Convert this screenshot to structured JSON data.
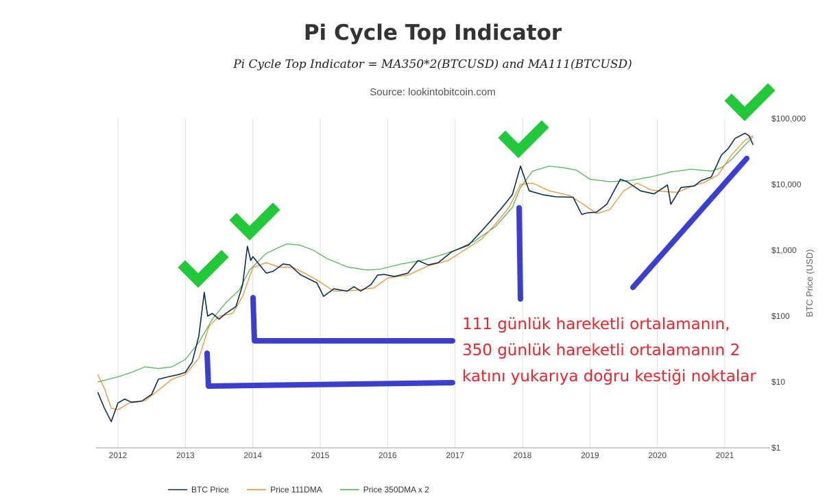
{
  "title": "Pi Cycle Top Indicator",
  "subtitle": "Pi Cycle Top Indicator = MA350*2(BTCUSD) and MA111(BTCUSD)",
  "source": "Source: lookintobitcoin.com",
  "annotation_lines": [
    "111 günlük hareketli ortalamanın,",
    "350 günlük hareketli ortalamanın 2",
    "katını yukarıya doğru kestiği noktalar"
  ],
  "chart_data": {
    "type": "line",
    "x_ticks": [
      "2012",
      "2013",
      "2014",
      "2015",
      "2016",
      "2017",
      "2018",
      "2019",
      "2020",
      "2021"
    ],
    "y_ticks": [
      "$1",
      "$10",
      "$100",
      "$1,000",
      "$10,000",
      "$100,000"
    ],
    "ylabel": "BTC Price (USD)",
    "yscale": "log",
    "ylim": [
      1,
      100000
    ],
    "xlim": [
      2011.7,
      2021.67
    ],
    "grid": true,
    "legend_position": "bottom",
    "series": [
      {
        "name": "BTC Price",
        "color": "#0b2d4f",
        "points": [
          [
            2011.7,
            7
          ],
          [
            2011.8,
            4
          ],
          [
            2011.9,
            2.5
          ],
          [
            2012.0,
            4.8
          ],
          [
            2012.1,
            5.5
          ],
          [
            2012.2,
            4.9
          ],
          [
            2012.35,
            5.1
          ],
          [
            2012.5,
            6.5
          ],
          [
            2012.6,
            11
          ],
          [
            2012.75,
            12
          ],
          [
            2012.9,
            13
          ],
          [
            2013.0,
            14
          ],
          [
            2013.1,
            20
          ],
          [
            2013.2,
            50
          ],
          [
            2013.28,
            230
          ],
          [
            2013.33,
            100
          ],
          [
            2013.4,
            110
          ],
          [
            2013.5,
            90
          ],
          [
            2013.6,
            110
          ],
          [
            2013.75,
            140
          ],
          [
            2013.85,
            300
          ],
          [
            2013.92,
            1150
          ],
          [
            2013.97,
            700
          ],
          [
            2014.0,
            800
          ],
          [
            2014.1,
            600
          ],
          [
            2014.2,
            450
          ],
          [
            2014.3,
            480
          ],
          [
            2014.45,
            620
          ],
          [
            2014.55,
            600
          ],
          [
            2014.7,
            430
          ],
          [
            2014.85,
            360
          ],
          [
            2014.95,
            320
          ],
          [
            2015.05,
            200
          ],
          [
            2015.2,
            260
          ],
          [
            2015.4,
            240
          ],
          [
            2015.5,
            280
          ],
          [
            2015.6,
            240
          ],
          [
            2015.75,
            300
          ],
          [
            2015.85,
            420
          ],
          [
            2015.95,
            430
          ],
          [
            2016.1,
            400
          ],
          [
            2016.3,
            450
          ],
          [
            2016.45,
            700
          ],
          [
            2016.6,
            600
          ],
          [
            2016.75,
            650
          ],
          [
            2016.95,
            950
          ],
          [
            2017.0,
            1000
          ],
          [
            2017.2,
            1200
          ],
          [
            2017.4,
            2000
          ],
          [
            2017.5,
            2600
          ],
          [
            2017.7,
            4500
          ],
          [
            2017.85,
            7000
          ],
          [
            2017.97,
            19000
          ],
          [
            2018.05,
            11000
          ],
          [
            2018.1,
            8000
          ],
          [
            2018.3,
            7000
          ],
          [
            2018.5,
            6500
          ],
          [
            2018.75,
            6400
          ],
          [
            2018.88,
            3500
          ],
          [
            2018.95,
            3700
          ],
          [
            2019.1,
            3800
          ],
          [
            2019.25,
            5000
          ],
          [
            2019.45,
            12000
          ],
          [
            2019.55,
            11000
          ],
          [
            2019.75,
            8000
          ],
          [
            2019.95,
            7200
          ],
          [
            2020.15,
            9800
          ],
          [
            2020.2,
            5000
          ],
          [
            2020.35,
            9000
          ],
          [
            2020.55,
            9500
          ],
          [
            2020.65,
            11500
          ],
          [
            2020.8,
            13000
          ],
          [
            2020.95,
            28000
          ],
          [
            2021.05,
            35000
          ],
          [
            2021.15,
            50000
          ],
          [
            2021.3,
            60000
          ],
          [
            2021.36,
            55000
          ],
          [
            2021.42,
            40000
          ]
        ]
      },
      {
        "name": "Price 111DMA",
        "color": "#f08a24",
        "points": [
          [
            2011.7,
            13
          ],
          [
            2011.8,
            8
          ],
          [
            2011.9,
            4
          ],
          [
            2012.0,
            3.8
          ],
          [
            2012.2,
            5
          ],
          [
            2012.4,
            5.2
          ],
          [
            2012.6,
            7.5
          ],
          [
            2012.8,
            11
          ],
          [
            2013.0,
            13
          ],
          [
            2013.2,
            23
          ],
          [
            2013.35,
            70
          ],
          [
            2013.5,
            100
          ],
          [
            2013.7,
            110
          ],
          [
            2013.85,
            200
          ],
          [
            2014.0,
            550
          ],
          [
            2014.2,
            650
          ],
          [
            2014.4,
            550
          ],
          [
            2014.6,
            550
          ],
          [
            2014.8,
            430
          ],
          [
            2015.0,
            330
          ],
          [
            2015.2,
            240
          ],
          [
            2015.5,
            245
          ],
          [
            2015.8,
            270
          ],
          [
            2016.0,
            380
          ],
          [
            2016.3,
            420
          ],
          [
            2016.6,
            580
          ],
          [
            2016.9,
            700
          ],
          [
            2017.1,
            950
          ],
          [
            2017.4,
            1500
          ],
          [
            2017.6,
            2500
          ],
          [
            2017.8,
            4500
          ],
          [
            2017.97,
            10000
          ],
          [
            2018.15,
            10500
          ],
          [
            2018.4,
            8000
          ],
          [
            2018.7,
            6800
          ],
          [
            2018.9,
            5000
          ],
          [
            2019.1,
            3600
          ],
          [
            2019.3,
            4200
          ],
          [
            2019.5,
            8000
          ],
          [
            2019.7,
            10500
          ],
          [
            2019.9,
            8300
          ],
          [
            2020.1,
            7800
          ],
          [
            2020.3,
            7600
          ],
          [
            2020.5,
            9300
          ],
          [
            2020.7,
            10800
          ],
          [
            2020.9,
            14000
          ],
          [
            2021.1,
            28000
          ],
          [
            2021.3,
            47000
          ],
          [
            2021.42,
            55000
          ]
        ]
      },
      {
        "name": "Price 350DMA x 2",
        "color": "#4caf50",
        "points": [
          [
            2011.7,
            10
          ],
          [
            2012.0,
            12
          ],
          [
            2012.2,
            14
          ],
          [
            2012.4,
            17
          ],
          [
            2012.6,
            16
          ],
          [
            2012.8,
            17
          ],
          [
            2013.0,
            22
          ],
          [
            2013.2,
            40
          ],
          [
            2013.4,
            90
          ],
          [
            2013.6,
            160
          ],
          [
            2013.8,
            250
          ],
          [
            2013.95,
            500
          ],
          [
            2014.2,
            900
          ],
          [
            2014.5,
            1250
          ],
          [
            2014.7,
            1200
          ],
          [
            2014.9,
            1000
          ],
          [
            2015.1,
            750
          ],
          [
            2015.4,
            560
          ],
          [
            2015.7,
            500
          ],
          [
            2015.9,
            520
          ],
          [
            2016.2,
            620
          ],
          [
            2016.5,
            700
          ],
          [
            2016.8,
            850
          ],
          [
            2017.0,
            1000
          ],
          [
            2017.3,
            1400
          ],
          [
            2017.6,
            2300
          ],
          [
            2017.85,
            4500
          ],
          [
            2017.97,
            9000
          ],
          [
            2018.15,
            16000
          ],
          [
            2018.4,
            19000
          ],
          [
            2018.6,
            18000
          ],
          [
            2018.8,
            16500
          ],
          [
            2019.0,
            12000
          ],
          [
            2019.3,
            11000
          ],
          [
            2019.6,
            11500
          ],
          [
            2019.9,
            13000
          ],
          [
            2020.2,
            15500
          ],
          [
            2020.5,
            17000
          ],
          [
            2020.8,
            16000
          ],
          [
            2020.95,
            18000
          ],
          [
            2021.1,
            24000
          ],
          [
            2021.3,
            40000
          ],
          [
            2021.42,
            53000
          ]
        ]
      }
    ]
  },
  "colors": {
    "check": "#21c83a",
    "marker": "#3b3fcf",
    "annotation": "#e8262d",
    "grid": "#dcdcdc"
  }
}
